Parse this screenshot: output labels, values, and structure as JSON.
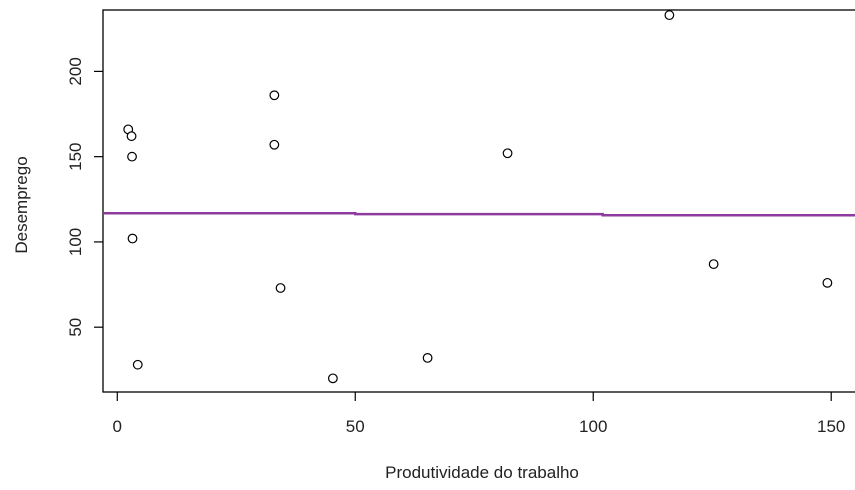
{
  "chart_data": {
    "type": "scatter",
    "title": "",
    "xlabel": "Produtividade do trabalho",
    "ylabel": "Desemprego",
    "xlim": [
      -3,
      155
    ],
    "ylim": [
      12,
      236
    ],
    "xticks": [
      0,
      50,
      100,
      150
    ],
    "yticks": [
      50,
      100,
      150,
      200
    ],
    "grid": false,
    "points": [
      {
        "x": 2.3,
        "y": 166
      },
      {
        "x": 3.0,
        "y": 162
      },
      {
        "x": 3.1,
        "y": 150
      },
      {
        "x": 3.2,
        "y": 102
      },
      {
        "x": 4.3,
        "y": 28
      },
      {
        "x": 33.0,
        "y": 186
      },
      {
        "x": 33.0,
        "y": 157
      },
      {
        "x": 34.3,
        "y": 73
      },
      {
        "x": 45.3,
        "y": 20
      },
      {
        "x": 65.2,
        "y": 32
      },
      {
        "x": 82.0,
        "y": 152
      },
      {
        "x": 116.0,
        "y": 233
      },
      {
        "x": 125.3,
        "y": 87
      },
      {
        "x": 149.2,
        "y": 76
      }
    ],
    "trend_line": {
      "color": "#8e3a9e",
      "points": [
        {
          "x": -3,
          "y": 116.8
        },
        {
          "x": 50,
          "y": 116.8
        },
        {
          "x": 50,
          "y": 116.3
        },
        {
          "x": 102,
          "y": 116.3
        },
        {
          "x": 102,
          "y": 115.7
        },
        {
          "x": 155,
          "y": 115.7
        }
      ]
    }
  }
}
